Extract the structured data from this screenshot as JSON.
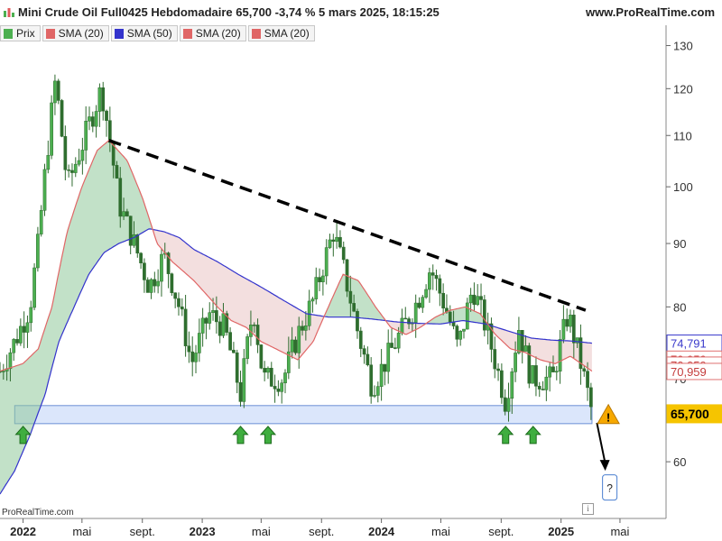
{
  "header": {
    "title": "Mini Crude Oil Full0425 Hebdomadaire 65,700 -3,74 % 5 mars 2025, 18:15:25",
    "site": "www.ProRealTime.com",
    "title_icon": "bar-chart-icon"
  },
  "legend": [
    {
      "label": "Prix",
      "color": "#4caf50"
    },
    {
      "label": "SMA (20)",
      "color": "#e06666"
    },
    {
      "label": "SMA (50)",
      "color": "#3333cc"
    },
    {
      "label": "SMA (20)",
      "color": "#e06666"
    },
    {
      "label": "SMA (20)",
      "color": "#e06666"
    }
  ],
  "footer": {
    "brand": "ProRealTime.com",
    "info_icon": "info-icon"
  },
  "chart_data": {
    "type": "candlestick",
    "title": "Mini Crude Oil Full0425 Hebdomadaire",
    "x_tick_labels": [
      "2022",
      "mai",
      "sept.",
      "2023",
      "mai",
      "sept.",
      "2024",
      "mai",
      "sept.",
      "2025",
      "mai"
    ],
    "x_tick_bold": [
      true,
      false,
      false,
      true,
      false,
      false,
      true,
      false,
      false,
      true,
      false
    ],
    "x_tick_dates": [
      "2022-01-01",
      "2022-05-01",
      "2022-09-01",
      "2023-01-01",
      "2023-05-01",
      "2023-09-01",
      "2024-01-01",
      "2024-05-01",
      "2024-09-01",
      "2025-01-01",
      "2025-05-01"
    ],
    "y_ticks": [
      60,
      70,
      80,
      90,
      100,
      110,
      120,
      130
    ],
    "y_scale": "log",
    "ylim": [
      54,
      135
    ],
    "price_points": [
      [
        "2021-11-15",
        71
      ],
      [
        "2021-12-15",
        75
      ],
      [
        "2022-01-15",
        80
      ],
      [
        "2022-02-01",
        90
      ],
      [
        "2022-03-08",
        122
      ],
      [
        "2022-04-01",
        100
      ],
      [
        "2022-05-01",
        108
      ],
      [
        "2022-06-10",
        120
      ],
      [
        "2022-07-15",
        97
      ],
      [
        "2022-08-15",
        90
      ],
      [
        "2022-09-15",
        83
      ],
      [
        "2022-10-15",
        88
      ],
      [
        "2022-11-15",
        80
      ],
      [
        "2022-12-10",
        72
      ],
      [
        "2023-01-15",
        79
      ],
      [
        "2023-02-15",
        77
      ],
      [
        "2023-03-20",
        68
      ],
      [
        "2023-04-15",
        80
      ],
      [
        "2023-05-05",
        70
      ],
      [
        "2023-06-15",
        70
      ],
      [
        "2023-07-15",
        76
      ],
      [
        "2023-08-15",
        81
      ],
      [
        "2023-09-25",
        92
      ],
      [
        "2023-10-15",
        86
      ],
      [
        "2023-11-15",
        76
      ],
      [
        "2023-12-13",
        69
      ],
      [
        "2024-01-15",
        73
      ],
      [
        "2024-02-15",
        77
      ],
      [
        "2024-03-15",
        81
      ],
      [
        "2024-04-10",
        86
      ],
      [
        "2024-05-15",
        79
      ],
      [
        "2024-06-05",
        74
      ],
      [
        "2024-07-05",
        83
      ],
      [
        "2024-08-01",
        77
      ],
      [
        "2024-09-10",
        67
      ],
      [
        "2024-10-07",
        77
      ],
      [
        "2024-11-01",
        70
      ],
      [
        "2024-12-15",
        70
      ],
      [
        "2025-01-15",
        79
      ],
      [
        "2025-02-10",
        72
      ],
      [
        "2025-03-05",
        65.7
      ]
    ],
    "sma20_points": [
      [
        "2021-11-15",
        71
      ],
      [
        "2022-01-01",
        72
      ],
      [
        "2022-02-01",
        74
      ],
      [
        "2022-03-01",
        80
      ],
      [
        "2022-04-01",
        92
      ],
      [
        "2022-05-01",
        100
      ],
      [
        "2022-06-01",
        107
      ],
      [
        "2022-06-25",
        109
      ],
      [
        "2022-08-01",
        105
      ],
      [
        "2022-09-01",
        98
      ],
      [
        "2022-10-01",
        90
      ],
      [
        "2022-11-01",
        87
      ],
      [
        "2022-12-15",
        84
      ],
      [
        "2023-02-01",
        80
      ],
      [
        "2023-03-01",
        78
      ],
      [
        "2023-04-01",
        77
      ],
      [
        "2023-05-01",
        75
      ],
      [
        "2023-06-15",
        73.5
      ],
      [
        "2023-07-15",
        72.5
      ],
      [
        "2023-08-15",
        75
      ],
      [
        "2023-09-15",
        80
      ],
      [
        "2023-10-15",
        85
      ],
      [
        "2023-11-15",
        84
      ],
      [
        "2023-12-20",
        80
      ],
      [
        "2024-01-20",
        77
      ],
      [
        "2024-02-20",
        76
      ],
      [
        "2024-03-20",
        77
      ],
      [
        "2024-04-20",
        78.5
      ],
      [
        "2024-05-20",
        79.5
      ],
      [
        "2024-06-20",
        80
      ],
      [
        "2024-07-20",
        79
      ],
      [
        "2024-08-20",
        76
      ],
      [
        "2024-09-20",
        74
      ],
      [
        "2024-10-20",
        73.5
      ],
      [
        "2024-11-20",
        72.5
      ],
      [
        "2024-12-20",
        72
      ],
      [
        "2025-01-20",
        73
      ],
      [
        "2025-03-05",
        71
      ]
    ],
    "sma50_points": [
      [
        "2021-11-15",
        56.5
      ],
      [
        "2021-12-15",
        59
      ],
      [
        "2022-01-15",
        63
      ],
      [
        "2022-02-15",
        68
      ],
      [
        "2022-03-15",
        75
      ],
      [
        "2022-04-15",
        80
      ],
      [
        "2022-05-15",
        85
      ],
      [
        "2022-06-15",
        88.5
      ],
      [
        "2022-07-15",
        90
      ],
      [
        "2022-08-15",
        91
      ],
      [
        "2022-09-15",
        92.5
      ],
      [
        "2022-10-15",
        92
      ],
      [
        "2022-11-15",
        91
      ],
      [
        "2022-12-15",
        89
      ],
      [
        "2023-02-01",
        87
      ],
      [
        "2023-03-15",
        85
      ],
      [
        "2023-05-01",
        83
      ],
      [
        "2023-06-15",
        81
      ],
      [
        "2023-08-01",
        79
      ],
      [
        "2023-09-15",
        78.5
      ],
      [
        "2023-11-01",
        78.5
      ],
      [
        "2023-12-15",
        78.2
      ],
      [
        "2024-02-01",
        77.8
      ],
      [
        "2024-03-15",
        77.6
      ],
      [
        "2024-05-01",
        77.5
      ],
      [
        "2024-06-15",
        78
      ],
      [
        "2024-08-01",
        77.5
      ],
      [
        "2024-09-15",
        76.5
      ],
      [
        "2024-11-01",
        75.5
      ],
      [
        "2024-12-15",
        75.2
      ],
      [
        "2025-01-20",
        75.1
      ],
      [
        "2025-03-05",
        74.791
      ]
    ],
    "trendline": {
      "start": [
        "2022-06-25",
        109
      ],
      "end": [
        "2025-02-20",
        79.5
      ],
      "style": "dashed",
      "color": "#000000"
    },
    "support_zone": {
      "x_start": "2021-12-15",
      "x_end": "2025-03-05",
      "y_low": 64.4,
      "y_high": 66.6,
      "color": "#dbe6fb"
    },
    "support_touches": [
      "2022-01-01",
      "2023-03-20",
      "2023-05-15",
      "2024-09-10",
      "2024-11-05"
    ],
    "projection_arrow": {
      "start": [
        "2025-03-15",
        64.5
      ],
      "end": [
        "2025-04-01",
        59
      ]
    },
    "warning_icon": {
      "x": "2025-03-20",
      "y": 65.5,
      "label": "!"
    },
    "question_box": {
      "x": "2025-04-01",
      "y": 57.2,
      "label": "?"
    },
    "last_price_labels": [
      {
        "value": "74,791",
        "y": 74.791,
        "color": "#3a3acb",
        "bg": "#ffffff",
        "border": "#3a3acb"
      },
      {
        "value": "70,959",
        "y": 72.6,
        "color": "#c43c3c",
        "bg": "#ffffff",
        "border": "#e07070"
      },
      {
        "value": "70,959",
        "y": 71.8,
        "color": "#c43c3c",
        "bg": "#ffffff",
        "border": "#e07070"
      },
      {
        "value": "70,959",
        "y": 70.959,
        "color": "#c43c3c",
        "bg": "#ffffff",
        "border": "#e07070"
      },
      {
        "value": "65,700",
        "y": 65.7,
        "color": "#000000",
        "bg": "#f6c400",
        "border": "#f6c400"
      }
    ],
    "colors": {
      "up": "#4caf50",
      "down": "#2e6e2e",
      "sma20": "#e06666",
      "sma50": "#3333cc",
      "fill_up": "#8fc99a",
      "fill_down": "#e9c5c5"
    }
  }
}
